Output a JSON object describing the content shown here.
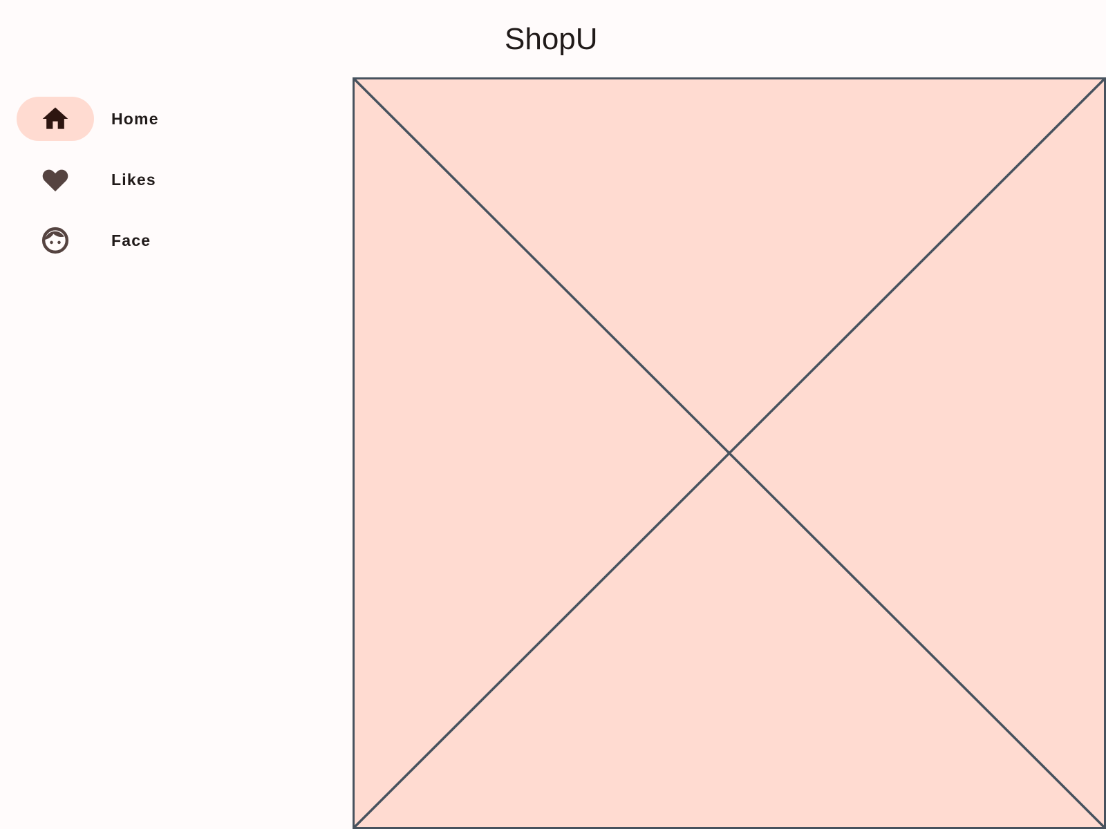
{
  "app": {
    "title": "ShopU"
  },
  "nav": {
    "items": [
      {
        "label": "Home",
        "icon": "home-icon",
        "active": true
      },
      {
        "label": "Likes",
        "icon": "heart-icon",
        "active": false
      },
      {
        "label": "Face",
        "icon": "face-icon",
        "active": false
      }
    ]
  },
  "colors": {
    "background": "#fffbfb",
    "accent_container": "#ffdbd1",
    "active_icon": "#2d1510",
    "inactive_icon": "#554340",
    "placeholder_fill": "#ffdbd1",
    "placeholder_stroke": "#47525e",
    "text": "#201a19"
  }
}
